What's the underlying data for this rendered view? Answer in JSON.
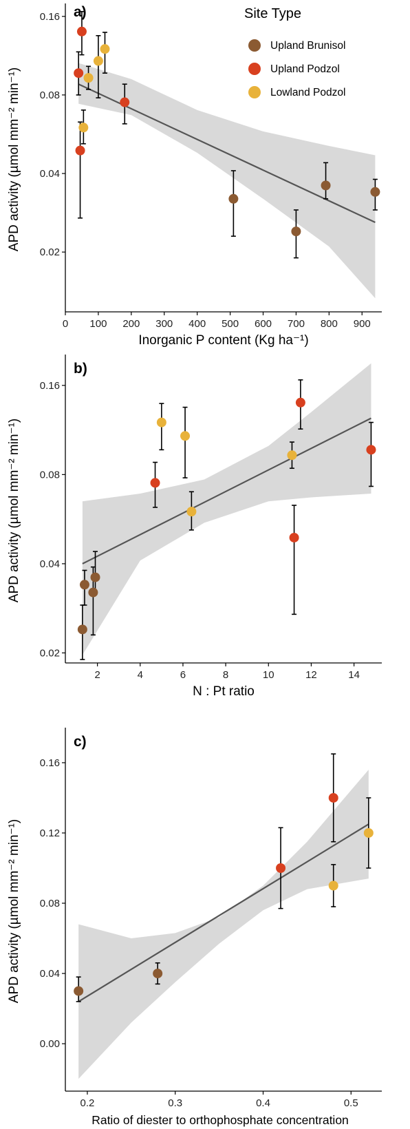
{
  "legend": {
    "title": "Site Type",
    "items": [
      {
        "label": "Upland Brunisol",
        "color": "#8B5A32"
      },
      {
        "label": "Upland Podzol",
        "color": "#D8401F"
      },
      {
        "label": "Lowland Podzol",
        "color": "#E8B23A"
      }
    ]
  },
  "style": {
    "band_color": "#D9D9D9",
    "line_color": "#555555",
    "axis_color": "#000000"
  },
  "chart_data": [
    {
      "type": "scatter",
      "panel_label": "a)",
      "ylabel": "APD activity (µmol mm⁻² min⁻¹)",
      "xlabel": "Inorganic P content (Kg ha⁻¹)",
      "x_scale": "linear",
      "y_scale": "log",
      "xlim": [
        0,
        960
      ],
      "ylim": [
        0.0118,
        0.174
      ],
      "x_ticks": [
        0,
        100,
        200,
        300,
        400,
        500,
        600,
        700,
        800,
        900
      ],
      "y_ticks": [
        0.02,
        0.04,
        0.08,
        0.16
      ],
      "y_tick_labels": [
        "0.02",
        "0.04",
        "0.08",
        "0.16"
      ],
      "grid": false,
      "points": [
        {
          "x": 50,
          "y": 0.14,
          "lo": 0.114,
          "hi": 0.167,
          "site": "Upland Podzol"
        },
        {
          "x": 40,
          "y": 0.097,
          "lo": 0.08,
          "hi": 0.117,
          "site": "Upland Podzol"
        },
        {
          "x": 45,
          "y": 0.049,
          "lo": 0.027,
          "hi": 0.063,
          "site": "Upland Podzol"
        },
        {
          "x": 180,
          "y": 0.075,
          "lo": 0.062,
          "hi": 0.088,
          "site": "Upland Podzol"
        },
        {
          "x": 55,
          "y": 0.06,
          "lo": 0.052,
          "hi": 0.07,
          "site": "Lowland Podzol"
        },
        {
          "x": 70,
          "y": 0.093,
          "lo": 0.084,
          "hi": 0.103,
          "site": "Lowland Podzol"
        },
        {
          "x": 100,
          "y": 0.108,
          "lo": 0.078,
          "hi": 0.135,
          "site": "Lowland Podzol"
        },
        {
          "x": 120,
          "y": 0.12,
          "lo": 0.097,
          "hi": 0.139,
          "site": "Lowland Podzol"
        },
        {
          "x": 510,
          "y": 0.032,
          "lo": 0.023,
          "hi": 0.041,
          "site": "Upland Brunisol"
        },
        {
          "x": 700,
          "y": 0.024,
          "lo": 0.019,
          "hi": 0.029,
          "site": "Upland Brunisol"
        },
        {
          "x": 790,
          "y": 0.036,
          "lo": 0.032,
          "hi": 0.044,
          "site": "Upland Brunisol"
        },
        {
          "x": 940,
          "y": 0.034,
          "lo": 0.029,
          "hi": 0.038,
          "site": "Upland Brunisol"
        }
      ],
      "fit": {
        "x": [
          40,
          940
        ],
        "y": [
          0.088,
          0.026
        ]
      },
      "band": {
        "x": [
          40,
          200,
          400,
          600,
          800,
          940
        ],
        "lo": [
          0.074,
          0.067,
          0.048,
          0.032,
          0.021,
          0.0133
        ],
        "hi": [
          0.106,
          0.092,
          0.07,
          0.058,
          0.051,
          0.047
        ]
      }
    },
    {
      "type": "scatter",
      "panel_label": "b)",
      "ylabel": "APD activity (µmol mm⁻² min⁻¹)",
      "xlabel": "N : Pt ratio",
      "x_scale": "linear",
      "y_scale": "log",
      "xlim": [
        0.5,
        15.3
      ],
      "ylim": [
        0.0185,
        0.198
      ],
      "x_ticks": [
        2,
        4,
        6,
        8,
        10,
        12,
        14
      ],
      "y_ticks": [
        0.02,
        0.04,
        0.08,
        0.16
      ],
      "y_tick_labels": [
        "0.02",
        "0.04",
        "0.08",
        "0.16"
      ],
      "grid": false,
      "points": [
        {
          "x": 1.3,
          "y": 0.024,
          "lo": 0.019,
          "hi": 0.029,
          "site": "Upland Brunisol"
        },
        {
          "x": 1.4,
          "y": 0.034,
          "lo": 0.029,
          "hi": 0.038,
          "site": "Upland Brunisol"
        },
        {
          "x": 1.8,
          "y": 0.032,
          "lo": 0.023,
          "hi": 0.039,
          "site": "Upland Brunisol"
        },
        {
          "x": 1.9,
          "y": 0.036,
          "lo": 0.032,
          "hi": 0.044,
          "site": "Upland Brunisol"
        },
        {
          "x": 4.7,
          "y": 0.075,
          "lo": 0.062,
          "hi": 0.088,
          "site": "Upland Podzol"
        },
        {
          "x": 5.0,
          "y": 0.12,
          "lo": 0.097,
          "hi": 0.139,
          "site": "Lowland Podzol"
        },
        {
          "x": 6.1,
          "y": 0.108,
          "lo": 0.078,
          "hi": 0.135,
          "site": "Lowland Podzol"
        },
        {
          "x": 6.4,
          "y": 0.06,
          "lo": 0.052,
          "hi": 0.07,
          "site": "Lowland Podzol"
        },
        {
          "x": 11.1,
          "y": 0.093,
          "lo": 0.084,
          "hi": 0.103,
          "site": "Lowland Podzol"
        },
        {
          "x": 11.2,
          "y": 0.049,
          "lo": 0.027,
          "hi": 0.063,
          "site": "Upland Podzol"
        },
        {
          "x": 11.5,
          "y": 0.14,
          "lo": 0.114,
          "hi": 0.167,
          "site": "Upland Podzol"
        },
        {
          "x": 14.8,
          "y": 0.097,
          "lo": 0.073,
          "hi": 0.12,
          "site": "Upland Podzol"
        }
      ],
      "fit": {
        "x": [
          1.3,
          14.8
        ],
        "y": [
          0.04,
          0.124
        ]
      },
      "band": {
        "x": [
          1.3,
          4,
          7,
          10,
          12,
          14.8
        ],
        "lo": [
          0.0197,
          0.041,
          0.055,
          0.065,
          0.067,
          0.069
        ],
        "hi": [
          0.065,
          0.069,
          0.077,
          0.1,
          0.13,
          0.19
        ]
      }
    },
    {
      "type": "scatter",
      "panel_label": "c)",
      "ylabel": "APD activity (µmol mm⁻² min⁻¹)",
      "xlabel": "Ratio of diester to orthophosphate concentration",
      "x_scale": "linear",
      "y_scale": "linear",
      "xlim": [
        0.175,
        0.535
      ],
      "ylim": [
        -0.027,
        0.178
      ],
      "x_ticks": [
        0.2,
        0.3,
        0.4,
        0.5
      ],
      "y_ticks": [
        0.0,
        0.04,
        0.08,
        0.12,
        0.16
      ],
      "y_tick_labels": [
        "0.00",
        "0.04",
        "0.08",
        "0.12",
        "0.16"
      ],
      "grid": false,
      "points": [
        {
          "x": 0.19,
          "y": 0.03,
          "lo": 0.024,
          "hi": 0.038,
          "site": "Upland Brunisol"
        },
        {
          "x": 0.28,
          "y": 0.04,
          "lo": 0.034,
          "hi": 0.046,
          "site": "Upland Brunisol"
        },
        {
          "x": 0.42,
          "y": 0.1,
          "lo": 0.077,
          "hi": 0.123,
          "site": "Upland Podzol"
        },
        {
          "x": 0.48,
          "y": 0.14,
          "lo": 0.115,
          "hi": 0.165,
          "site": "Upland Podzol"
        },
        {
          "x": 0.48,
          "y": 0.09,
          "lo": 0.078,
          "hi": 0.102,
          "site": "Lowland Podzol"
        },
        {
          "x": 0.52,
          "y": 0.12,
          "lo": 0.1,
          "hi": 0.14,
          "site": "Lowland Podzol"
        }
      ],
      "fit": {
        "x": [
          0.19,
          0.52
        ],
        "y": [
          0.024,
          0.125
        ]
      },
      "band": {
        "x": [
          0.19,
          0.25,
          0.3,
          0.35,
          0.4,
          0.45,
          0.52
        ],
        "lo": [
          -0.02,
          0.012,
          0.035,
          0.057,
          0.076,
          0.088,
          0.094
        ],
        "hi": [
          0.068,
          0.06,
          0.063,
          0.072,
          0.09,
          0.115,
          0.156
        ]
      }
    }
  ]
}
